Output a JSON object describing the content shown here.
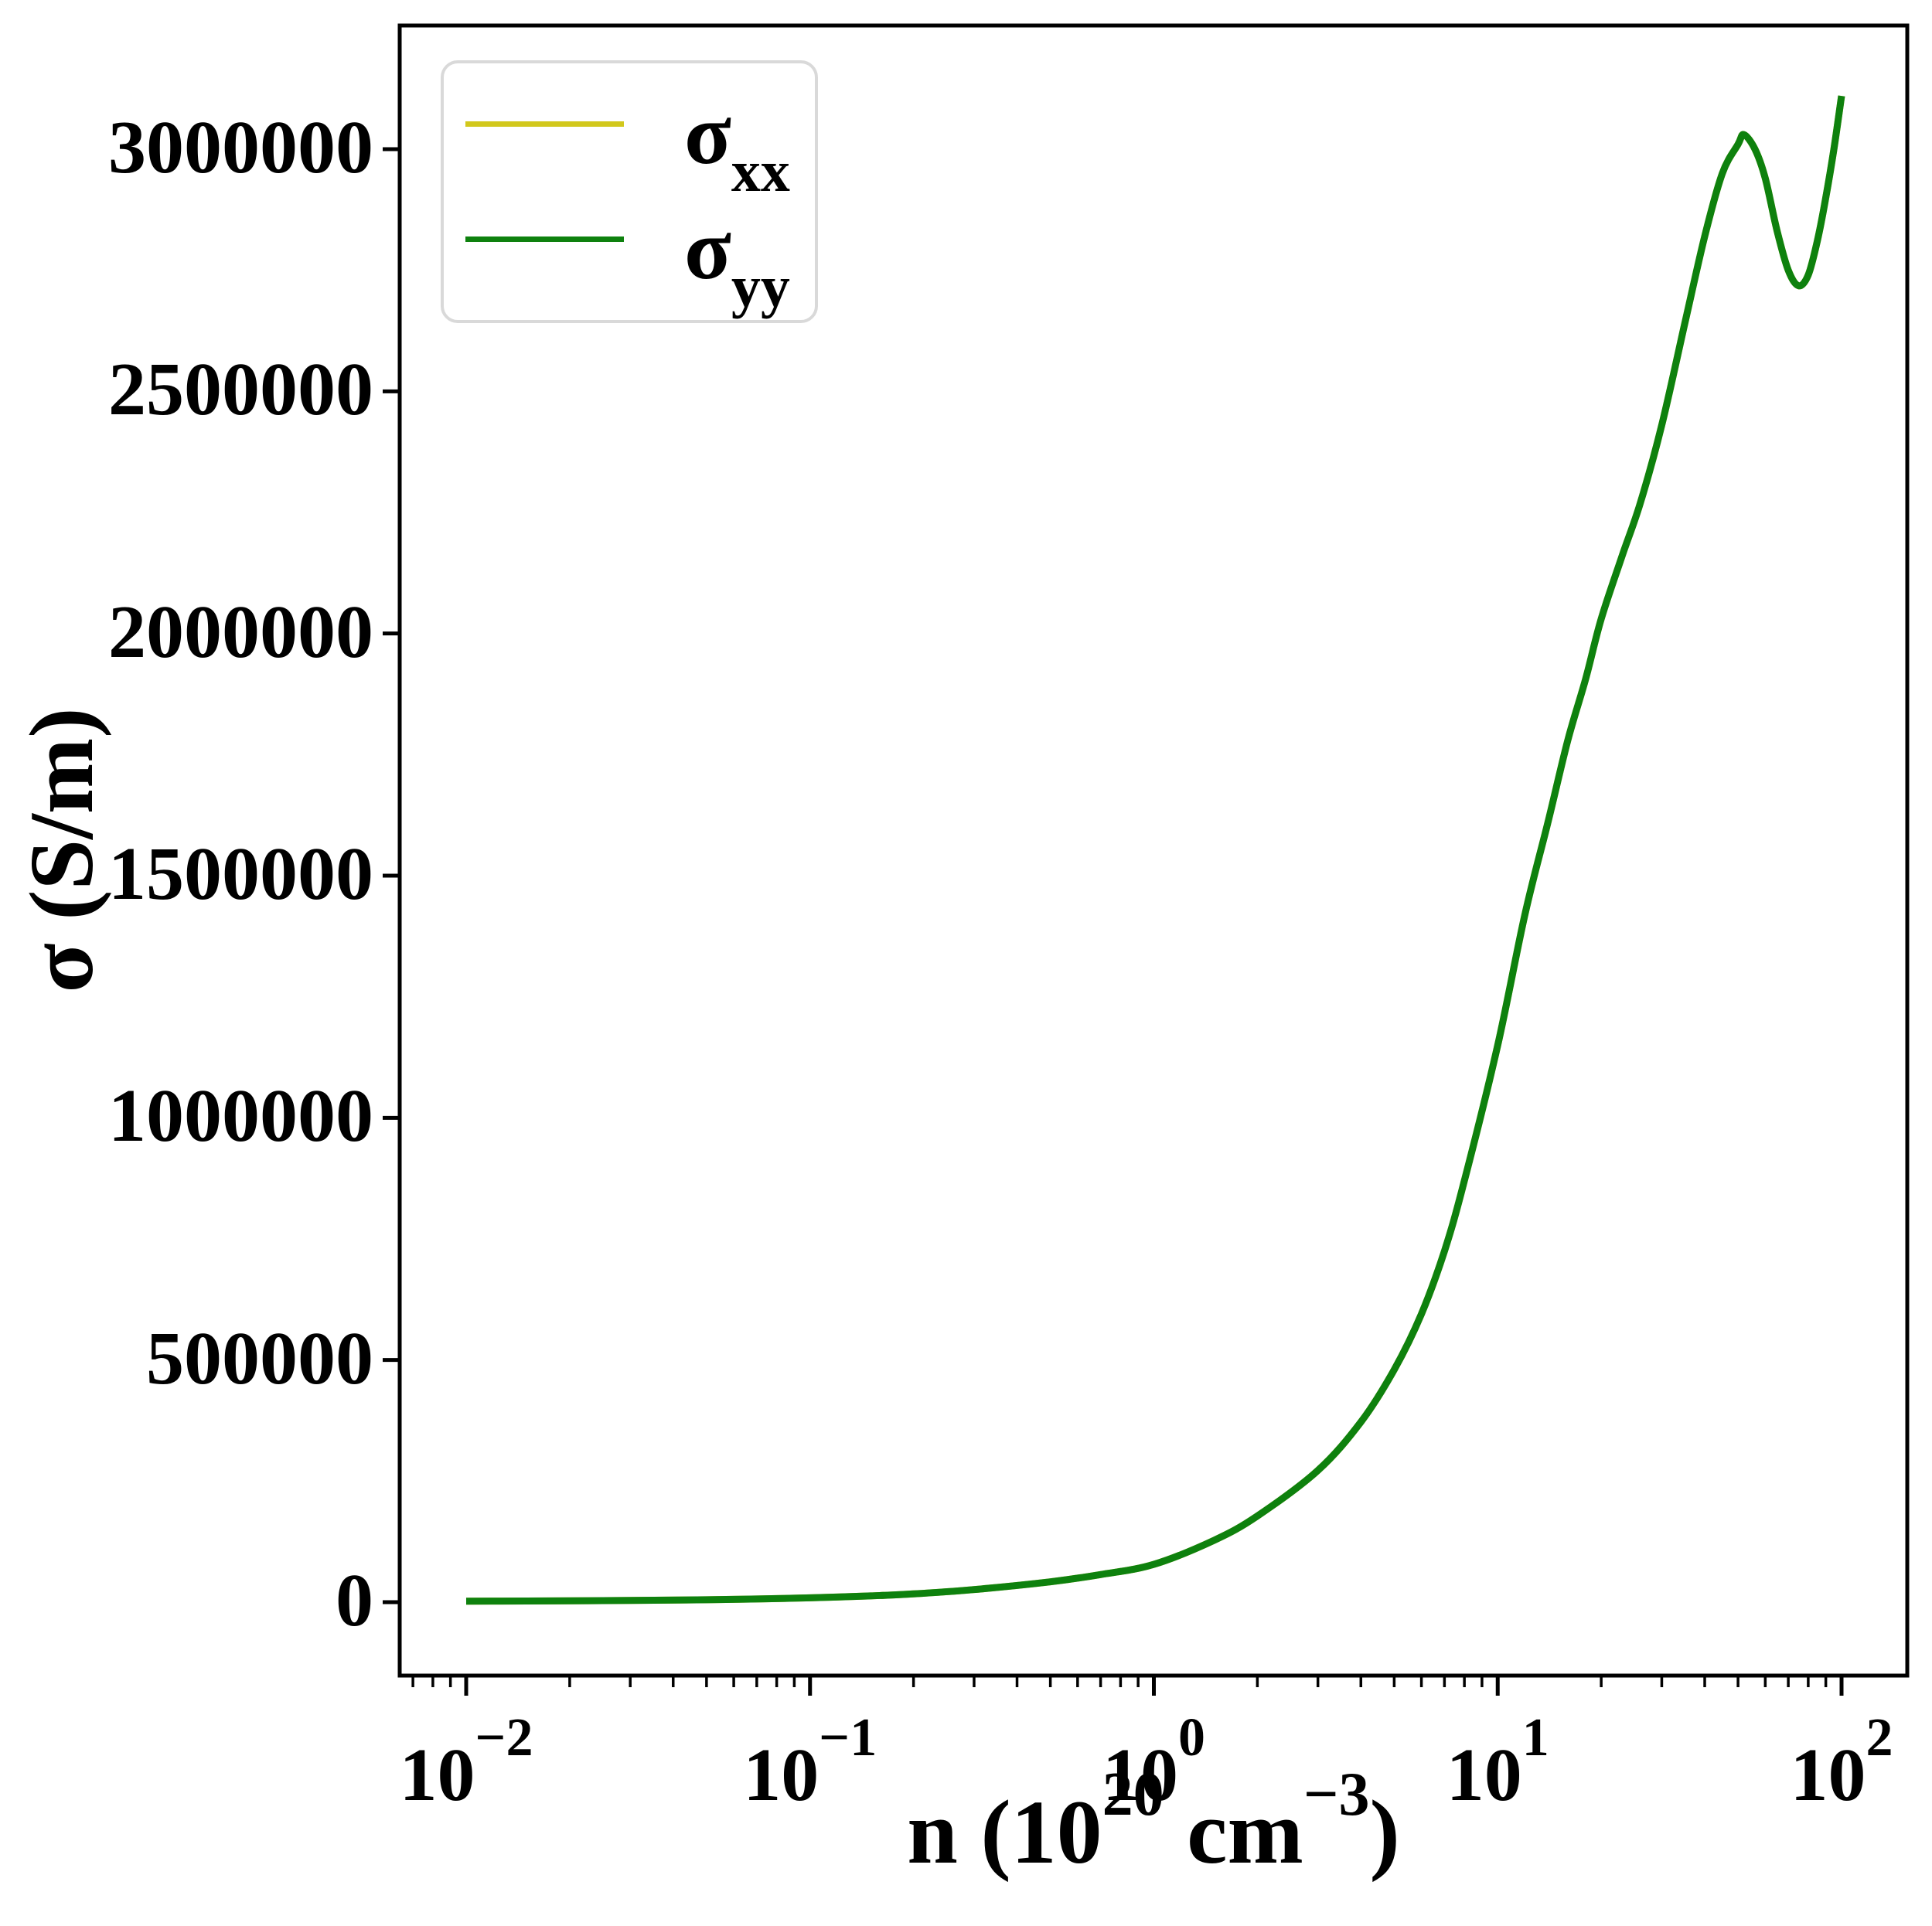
{
  "axes": {
    "x": {
      "scale": "log",
      "label_text": "n (10^20 cm^-3)",
      "label_parts": {
        "prefix": "n (10",
        "sup1": "20",
        "mid": " cm",
        "sup2": "−3",
        "suffix": ")"
      },
      "tick_base": "10",
      "tick_exponents": [
        "−2",
        "−1",
        "0",
        "1",
        "2"
      ],
      "tick_exponent_values": [
        -2,
        -1,
        0,
        1,
        2
      ],
      "range_exponents": [
        -2.19,
        2.19
      ],
      "minor_tick_subs": [
        2,
        3,
        4,
        5,
        6,
        7,
        8,
        9
      ]
    },
    "y": {
      "scale": "linear",
      "label": "σ (S/m)",
      "tick_values": [
        0,
        500000,
        1000000,
        1500000,
        2000000,
        2500000,
        3000000
      ],
      "tick_labels": [
        "0",
        "500000",
        "1000000",
        "1500000",
        "2000000",
        "2500000",
        "3000000"
      ],
      "range": [
        -155000,
        3267000
      ]
    }
  },
  "legend": {
    "position": "upper left",
    "items": [
      {
        "base": "σ",
        "sub": "xx",
        "color": "#d2c81c"
      },
      {
        "base": "σ",
        "sub": "yy",
        "color": "#0e810e"
      }
    ]
  },
  "style_colors": {
    "spine": "#000000",
    "tick": "#000000",
    "legend_border": "#d9d9d9",
    "background": "#ffffff"
  },
  "chart_data": {
    "type": "line",
    "title": "",
    "xlabel": "n (10^20 cm^-3)",
    "ylabel": "σ (S/m)",
    "x_scale": "log",
    "x_range": [
      0.01,
      100
    ],
    "ylim": [
      -155000,
      3267000
    ],
    "grid": false,
    "legend_position": "upper left",
    "series": [
      {
        "name": "σ_xx",
        "color": "#d2c81c",
        "points": [
          [
            0.01,
            2000
          ],
          [
            0.015,
            2400
          ],
          [
            0.02,
            2800
          ],
          [
            0.03,
            3500
          ],
          [
            0.05,
            5000
          ],
          [
            0.07,
            6500
          ],
          [
            0.1,
            9000
          ],
          [
            0.15,
            13000
          ],
          [
            0.2,
            17000
          ],
          [
            0.3,
            26000
          ],
          [
            0.5,
            42000
          ],
          [
            0.7,
            57000
          ],
          [
            1,
            78000
          ],
          [
            1.5,
            128000
          ],
          [
            2,
            178000
          ],
          [
            3,
            272000
          ],
          [
            4,
            372000
          ],
          [
            5,
            480000
          ],
          [
            6,
            595000
          ],
          [
            7,
            725000
          ],
          [
            8,
            870000
          ],
          [
            10,
            1150000
          ],
          [
            12,
            1420000
          ],
          [
            14,
            1610000
          ],
          [
            16,
            1780000
          ],
          [
            18,
            1905000
          ],
          [
            20,
            2030000
          ],
          [
            23,
            2160000
          ],
          [
            26,
            2270000
          ],
          [
            30,
            2430000
          ],
          [
            35,
            2640000
          ],
          [
            40,
            2820000
          ],
          [
            45,
            2950000
          ],
          [
            50,
            3010000
          ],
          [
            52,
            3030000
          ],
          [
            56,
            3000000
          ],
          [
            60,
            2940000
          ],
          [
            65,
            2830000
          ],
          [
            70,
            2750000
          ],
          [
            75,
            2718000
          ],
          [
            80,
            2740000
          ],
          [
            85,
            2810000
          ],
          [
            90,
            2900000
          ],
          [
            95,
            3000000
          ],
          [
            100,
            3110000
          ]
        ]
      },
      {
        "name": "σ_yy",
        "color": "#0e810e",
        "points": [
          [
            0.01,
            2000
          ],
          [
            0.015,
            2400
          ],
          [
            0.02,
            2800
          ],
          [
            0.03,
            3500
          ],
          [
            0.05,
            5000
          ],
          [
            0.07,
            6500
          ],
          [
            0.1,
            9000
          ],
          [
            0.15,
            13000
          ],
          [
            0.2,
            17000
          ],
          [
            0.3,
            26000
          ],
          [
            0.5,
            42000
          ],
          [
            0.7,
            57000
          ],
          [
            1,
            78000
          ],
          [
            1.5,
            128000
          ],
          [
            2,
            178000
          ],
          [
            3,
            272000
          ],
          [
            4,
            372000
          ],
          [
            5,
            480000
          ],
          [
            6,
            595000
          ],
          [
            7,
            725000
          ],
          [
            8,
            870000
          ],
          [
            10,
            1150000
          ],
          [
            12,
            1420000
          ],
          [
            14,
            1610000
          ],
          [
            16,
            1780000
          ],
          [
            18,
            1905000
          ],
          [
            20,
            2030000
          ],
          [
            23,
            2160000
          ],
          [
            26,
            2270000
          ],
          [
            30,
            2430000
          ],
          [
            35,
            2640000
          ],
          [
            40,
            2820000
          ],
          [
            45,
            2950000
          ],
          [
            50,
            3010000
          ],
          [
            52,
            3030000
          ],
          [
            56,
            3000000
          ],
          [
            60,
            2940000
          ],
          [
            65,
            2830000
          ],
          [
            70,
            2750000
          ],
          [
            75,
            2718000
          ],
          [
            80,
            2740000
          ],
          [
            85,
            2810000
          ],
          [
            90,
            2900000
          ],
          [
            95,
            3000000
          ],
          [
            100,
            3110000
          ]
        ]
      }
    ]
  }
}
